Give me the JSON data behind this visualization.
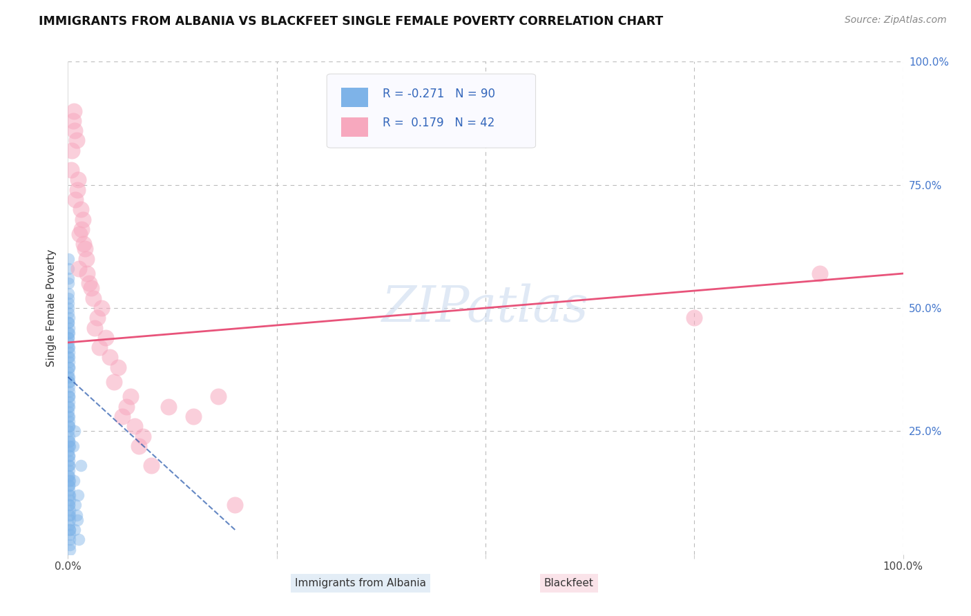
{
  "title": "IMMIGRANTS FROM ALBANIA VS BLACKFEET SINGLE FEMALE POVERTY CORRELATION CHART",
  "source": "Source: ZipAtlas.com",
  "ylabel": "Single Female Poverty",
  "legend_label1": "Immigrants from Albania",
  "legend_label2": "Blackfeet",
  "r1": -0.271,
  "n1": 90,
  "r2": 0.179,
  "n2": 42,
  "xlim": [
    0.0,
    1.0
  ],
  "ylim": [
    0.0,
    1.0
  ],
  "color_blue": "#7EB3E8",
  "color_pink": "#F7A8BE",
  "line_color_blue": "#2255AA",
  "line_color_pink": "#E8537A",
  "bg_color": "#FFFFFF",
  "blue_scatter_x": [
    0.001,
    0.0008,
    0.0015,
    0.0005,
    0.002,
    0.001,
    0.0012,
    0.0018,
    0.0007,
    0.0022,
    0.0003,
    0.0009,
    0.0016,
    0.0006,
    0.0011,
    0.0014,
    0.0008,
    0.0019,
    0.0004,
    0.0013,
    0.001,
    0.0017,
    0.0006,
    0.0021,
    0.0005,
    0.0015,
    0.0009,
    0.0012,
    0.0007,
    0.002,
    0.0003,
    0.0011,
    0.0016,
    0.0008,
    0.0014,
    0.001,
    0.0018,
    0.0006,
    0.0013,
    0.0009,
    0.0007,
    0.0015,
    0.0011,
    0.0017,
    0.0004,
    0.0022,
    0.0008,
    0.0012,
    0.0016,
    0.0005,
    0.002,
    0.0009,
    0.0014,
    0.0007,
    0.0018,
    0.0011,
    0.0006,
    0.0013,
    0.001,
    0.0015,
    0.0019,
    0.0008,
    0.0012,
    0.0004,
    0.0017,
    0.0009,
    0.0021,
    0.0006,
    0.0013,
    0.001,
    0.0016,
    0.0007,
    0.0011,
    0.0014,
    0.0008,
    0.0018,
    0.0005,
    0.0012,
    0.0009,
    0.0015,
    0.008,
    0.01,
    0.012,
    0.007,
    0.009,
    0.011,
    0.015,
    0.006,
    0.013,
    0.008
  ],
  "blue_scatter_y": [
    0.32,
    0.28,
    0.15,
    0.42,
    0.22,
    0.18,
    0.35,
    0.12,
    0.4,
    0.08,
    0.25,
    0.48,
    0.2,
    0.3,
    0.1,
    0.38,
    0.16,
    0.05,
    0.44,
    0.27,
    0.33,
    0.14,
    0.5,
    0.09,
    0.36,
    0.23,
    0.45,
    0.19,
    0.55,
    0.07,
    0.29,
    0.41,
    0.13,
    0.37,
    0.24,
    0.46,
    0.11,
    0.52,
    0.17,
    0.31,
    0.43,
    0.06,
    0.26,
    0.39,
    0.21,
    0.03,
    0.47,
    0.34,
    0.08,
    0.53,
    0.15,
    0.42,
    0.28,
    0.58,
    0.04,
    0.35,
    0.49,
    0.22,
    0.38,
    0.12,
    0.02,
    0.44,
    0.3,
    0.56,
    0.18,
    0.4,
    0.01,
    0.47,
    0.26,
    0.36,
    0.14,
    0.51,
    0.23,
    0.1,
    0.45,
    0.05,
    0.6,
    0.32,
    0.2,
    0.16,
    0.05,
    0.08,
    0.12,
    0.15,
    0.1,
    0.07,
    0.18,
    0.22,
    0.03,
    0.25
  ],
  "pink_scatter_x": [
    0.005,
    0.008,
    0.004,
    0.007,
    0.01,
    0.006,
    0.012,
    0.009,
    0.015,
    0.011,
    0.018,
    0.014,
    0.02,
    0.016,
    0.022,
    0.013,
    0.025,
    0.019,
    0.03,
    0.023,
    0.035,
    0.028,
    0.04,
    0.032,
    0.045,
    0.038,
    0.05,
    0.06,
    0.055,
    0.07,
    0.065,
    0.08,
    0.075,
    0.09,
    0.085,
    0.1,
    0.12,
    0.15,
    0.18,
    0.2,
    0.75,
    0.9
  ],
  "pink_scatter_y": [
    0.82,
    0.86,
    0.78,
    0.9,
    0.84,
    0.88,
    0.76,
    0.72,
    0.7,
    0.74,
    0.68,
    0.65,
    0.62,
    0.66,
    0.6,
    0.58,
    0.55,
    0.63,
    0.52,
    0.57,
    0.48,
    0.54,
    0.5,
    0.46,
    0.44,
    0.42,
    0.4,
    0.38,
    0.35,
    0.3,
    0.28,
    0.26,
    0.32,
    0.24,
    0.22,
    0.18,
    0.3,
    0.28,
    0.32,
    0.1,
    0.48,
    0.57
  ],
  "pink_line_x0": 0.0,
  "pink_line_y0": 0.43,
  "pink_line_x1": 1.0,
  "pink_line_y1": 0.57,
  "blue_line_x0": 0.0,
  "blue_line_y0": 0.36,
  "blue_line_x1": 0.2,
  "blue_line_y1": 0.05
}
